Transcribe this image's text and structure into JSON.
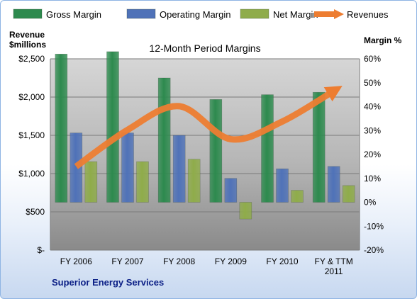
{
  "chart_data": {
    "type": "bar",
    "title": "12-Month Period Margins",
    "left_axis_label": [
      "Revenue",
      "$millions"
    ],
    "right_axis_label": "Margin %",
    "footer": "Superior Energy Services",
    "categories": [
      [
        "FY 2006"
      ],
      [
        "FY 2007"
      ],
      [
        "FY 2008"
      ],
      [
        "FY 2009"
      ],
      [
        "FY 2010"
      ],
      [
        "FY & TTM",
        "2011"
      ]
    ],
    "left_axis": {
      "min": 0,
      "max": 2500,
      "step": 500,
      "tick_labels": [
        "$-",
        "$500",
        "$1,000",
        "$1,500",
        "$2,000",
        "$2,500"
      ]
    },
    "right_axis": {
      "min": -20,
      "max": 60,
      "step": 10,
      "tick_labels": [
        "-20%",
        "-10%",
        "0%",
        "10%",
        "20%",
        "30%",
        "40%",
        "50%",
        "60%"
      ]
    },
    "series": [
      {
        "name": "Gross Margin",
        "type": "bar",
        "axis": "right",
        "color": "#2d8a4e",
        "values": [
          62,
          63,
          52,
          43,
          45,
          46
        ]
      },
      {
        "name": "Operating Margin",
        "type": "bar",
        "axis": "right",
        "color": "#4f72b8",
        "values": [
          29,
          29,
          28,
          10,
          14,
          15
        ]
      },
      {
        "name": "Net Margin",
        "type": "bar",
        "axis": "right",
        "color": "#8fac4a",
        "values": [
          17,
          17,
          18,
          -7,
          5,
          7
        ]
      },
      {
        "name": "Revenues",
        "type": "line",
        "axis": "left",
        "color": "#ed7d31",
        "values": [
          1093,
          1572,
          1881,
          1450,
          1680,
          2080
        ]
      }
    ],
    "grid": true,
    "legend": "top"
  }
}
